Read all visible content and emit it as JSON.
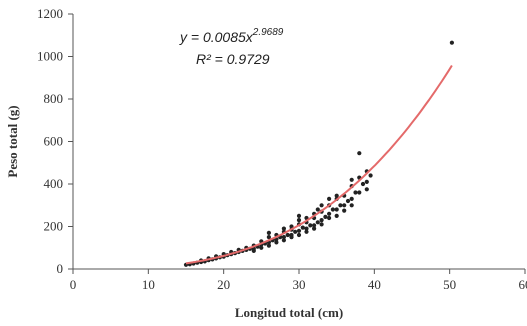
{
  "chart_data": {
    "type": "scatter",
    "title": "",
    "xlabel": "Longitud total (cm)",
    "ylabel": "Peso total (g)",
    "xlim": [
      0,
      60
    ],
    "ylim": [
      0,
      1200
    ],
    "xticks": [
      "0",
      "10",
      "20",
      "30",
      "40",
      "50",
      "60"
    ],
    "yticks": [
      "0",
      "200",
      "400",
      "600",
      "800",
      "1000",
      "1200"
    ],
    "grid": false,
    "equation": {
      "line1_prefix": "y = 0.0085x",
      "line1_exponent": "2.9689",
      "line2": "R² = 0.9729"
    },
    "fit": {
      "a": 0.0085,
      "b": 2.9689,
      "x_range": [
        15,
        50.3
      ],
      "color": "#e46a6a"
    },
    "point_color": "#222222",
    "series": [
      {
        "points": [
          [
            15,
            20
          ],
          [
            15.5,
            22
          ],
          [
            16,
            26
          ],
          [
            16.5,
            30
          ],
          [
            17,
            33
          ],
          [
            17.5,
            36
          ],
          [
            17,
            40
          ],
          [
            18,
            42
          ],
          [
            18.5,
            45
          ],
          [
            18,
            50
          ],
          [
            19,
            50
          ],
          [
            19.5,
            55
          ],
          [
            19,
            60
          ],
          [
            20,
            58
          ],
          [
            20.5,
            65
          ],
          [
            20,
            70
          ],
          [
            21,
            70
          ],
          [
            21.5,
            75
          ],
          [
            21,
            80
          ],
          [
            22,
            80
          ],
          [
            22.5,
            85
          ],
          [
            22,
            90
          ],
          [
            23,
            90
          ],
          [
            23.5,
            95
          ],
          [
            23,
            100
          ],
          [
            24,
            95
          ],
          [
            24.5,
            105
          ],
          [
            24,
            110
          ],
          [
            24,
            85
          ],
          [
            25,
            100
          ],
          [
            25,
            115
          ],
          [
            25.5,
            120
          ],
          [
            25,
            130
          ],
          [
            26,
            110
          ],
          [
            26,
            125
          ],
          [
            26.5,
            135
          ],
          [
            26,
            150
          ],
          [
            26,
            170
          ],
          [
            27,
            125
          ],
          [
            27,
            140
          ],
          [
            27.5,
            150
          ],
          [
            27,
            160
          ],
          [
            28,
            135
          ],
          [
            28,
            150
          ],
          [
            28.5,
            160
          ],
          [
            28,
            175
          ],
          [
            28,
            190
          ],
          [
            29,
            150
          ],
          [
            29,
            160
          ],
          [
            29.5,
            175
          ],
          [
            29,
            185
          ],
          [
            29,
            200
          ],
          [
            30,
            160
          ],
          [
            30,
            180
          ],
          [
            30.5,
            195
          ],
          [
            30,
            210
          ],
          [
            30,
            230
          ],
          [
            30,
            250
          ],
          [
            31,
            175
          ],
          [
            31,
            190
          ],
          [
            31.5,
            205
          ],
          [
            31,
            220
          ],
          [
            31,
            240
          ],
          [
            32,
            190
          ],
          [
            32,
            205
          ],
          [
            32.5,
            220
          ],
          [
            32,
            240
          ],
          [
            32,
            260
          ],
          [
            32.5,
            280
          ],
          [
            33,
            210
          ],
          [
            33,
            230
          ],
          [
            33.5,
            245
          ],
          [
            33,
            270
          ],
          [
            33,
            300
          ],
          [
            34,
            240
          ],
          [
            34,
            260
          ],
          [
            34.5,
            280
          ],
          [
            34,
            300
          ],
          [
            34,
            330
          ],
          [
            35,
            250
          ],
          [
            35,
            280
          ],
          [
            35.5,
            300
          ],
          [
            35,
            330
          ],
          [
            35,
            345
          ],
          [
            36,
            275
          ],
          [
            36,
            300
          ],
          [
            36.5,
            320
          ],
          [
            36,
            345
          ],
          [
            37,
            300
          ],
          [
            37,
            330
          ],
          [
            37.5,
            360
          ],
          [
            37,
            390
          ],
          [
            37,
            420
          ],
          [
            38,
            360
          ],
          [
            38.5,
            400
          ],
          [
            38,
            430
          ],
          [
            38,
            545
          ],
          [
            39,
            375
          ],
          [
            39,
            410
          ],
          [
            39.5,
            440
          ],
          [
            39,
            460
          ],
          [
            50.3,
            1065
          ]
        ]
      }
    ]
  }
}
